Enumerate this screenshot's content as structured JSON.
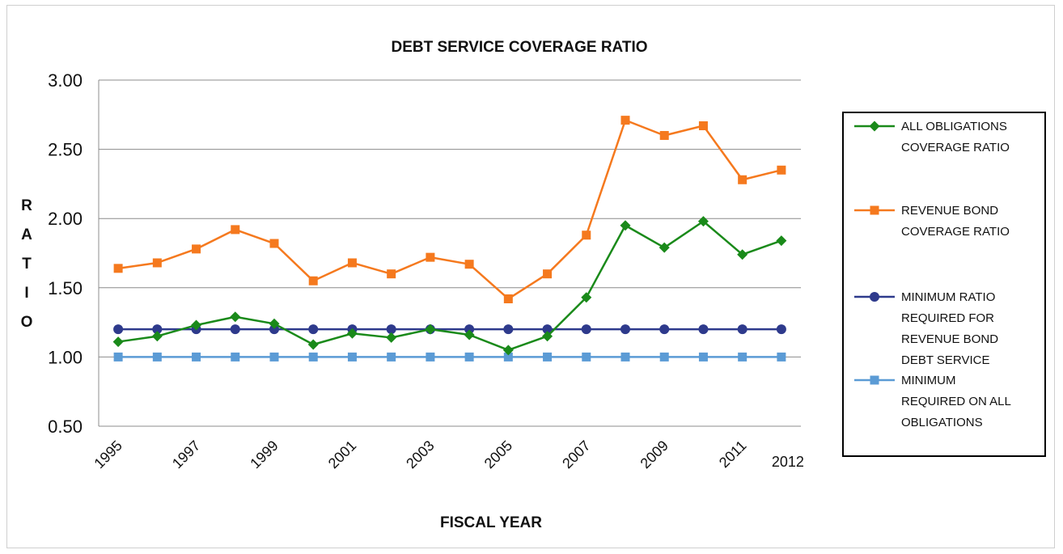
{
  "chart_data": {
    "type": "line",
    "title": "DEBT SERVICE COVERAGE RATIO",
    "xlabel": "FISCAL YEAR",
    "ylabel": "RATIO",
    "ylim": [
      0.5,
      3.0
    ],
    "yticks": [
      "3.00",
      "2.50",
      "2.00",
      "1.50",
      "1.00",
      "0.50"
    ],
    "ytick_values": [
      3.0,
      2.5,
      2.0,
      1.5,
      1.0,
      0.5
    ],
    "grid": true,
    "legend_position": "right",
    "x": [
      1995,
      1996,
      1997,
      1998,
      1999,
      2000,
      2001,
      2002,
      2003,
      2004,
      2005,
      2006,
      2007,
      2008,
      2009,
      2010,
      2011,
      2012
    ],
    "xtick_labels": [
      "1995",
      "1997",
      "1999",
      "2001",
      "2003",
      "2005",
      "2007",
      "2009",
      "2011",
      "2012"
    ],
    "xtick_years": [
      1995,
      1997,
      1999,
      2001,
      2003,
      2005,
      2007,
      2009,
      2011,
      2012
    ],
    "series": [
      {
        "name": "ALL OBLIGATIONS COVERAGE RATIO",
        "legend_lines": [
          "ALL OBLIGATIONS",
          "COVERAGE RATIO"
        ],
        "color": "#1a8a1a",
        "marker": "diamond",
        "values": [
          1.11,
          1.15,
          1.23,
          1.29,
          1.24,
          1.09,
          1.17,
          1.14,
          1.2,
          1.16,
          1.05,
          1.15,
          1.43,
          1.95,
          1.79,
          1.98,
          1.74,
          1.84
        ]
      },
      {
        "name": "REVENUE BOND COVERAGE RATIO",
        "legend_lines": [
          "REVENUE BOND",
          "COVERAGE RATIO"
        ],
        "color": "#f5791e",
        "marker": "square",
        "values": [
          1.64,
          1.68,
          1.78,
          1.92,
          1.82,
          1.55,
          1.68,
          1.6,
          1.72,
          1.67,
          1.42,
          1.6,
          1.88,
          2.71,
          2.6,
          2.67,
          2.28,
          2.35
        ]
      },
      {
        "name": "MINIMUM RATIO REQUIRED FOR REVENUE BOND DEBT SERVICE",
        "legend_lines": [
          "MINIMUM RATIO",
          "REQUIRED FOR",
          "REVENUE BOND",
          "DEBT SERVICE"
        ],
        "color": "#2e3a8c",
        "marker": "circle",
        "values": [
          1.2,
          1.2,
          1.2,
          1.2,
          1.2,
          1.2,
          1.2,
          1.2,
          1.2,
          1.2,
          1.2,
          1.2,
          1.2,
          1.2,
          1.2,
          1.2,
          1.2,
          1.2
        ]
      },
      {
        "name": "MINIMUM REQUIRED ON ALL OBLIGATIONS",
        "legend_lines": [
          "MINIMUM",
          "REQUIRED ON ALL",
          "OBLIGATIONS"
        ],
        "color": "#5b9bd5",
        "marker": "square",
        "values": [
          1.0,
          1.0,
          1.0,
          1.0,
          1.0,
          1.0,
          1.0,
          1.0,
          1.0,
          1.0,
          1.0,
          1.0,
          1.0,
          1.0,
          1.0,
          1.0,
          1.0,
          1.0
        ]
      }
    ]
  }
}
